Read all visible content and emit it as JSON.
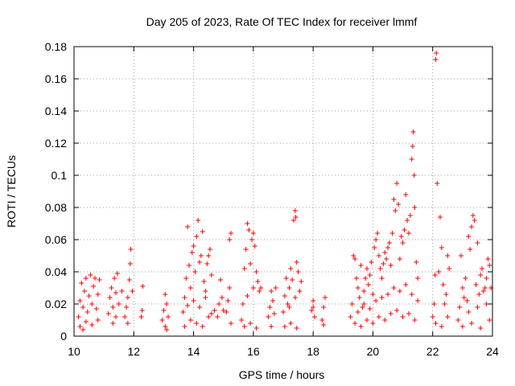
{
  "chart_data": {
    "type": "scatter",
    "title": "Day 205 of 2023, Rate Of TEC Index for receiver lmmf",
    "xlabel": "GPS time / hours",
    "ylabel": "ROTI / TECUs",
    "xlim": [
      10,
      24
    ],
    "ylim": [
      0,
      0.18
    ],
    "x_ticks": [
      10,
      12,
      14,
      16,
      18,
      20,
      22,
      24
    ],
    "x_tick_labels": [
      "10",
      "12",
      "14",
      "16",
      "18",
      "20",
      "22",
      "24"
    ],
    "y_ticks": [
      0,
      0.02,
      0.04,
      0.06,
      0.08,
      0.1,
      0.12,
      0.14,
      0.16,
      0.18
    ],
    "y_tick_labels": [
      "0",
      "0.02",
      "0.04",
      "0.06",
      "0.08",
      "0.1",
      "0.12",
      "0.14",
      "0.16",
      "0.18"
    ],
    "grid": true,
    "marker": "plus",
    "color": "#ff0000",
    "series": [
      {
        "name": "ROTI",
        "points": [
          [
            10.15,
            0.012
          ],
          [
            10.2,
            0.022
          ],
          [
            10.25,
            0.033
          ],
          [
            10.3,
            0.018
          ],
          [
            10.35,
            0.028
          ],
          [
            10.4,
            0.036
          ],
          [
            10.45,
            0.015
          ],
          [
            10.5,
            0.025
          ],
          [
            10.55,
            0.038
          ],
          [
            10.6,
            0.02
          ],
          [
            10.65,
            0.031
          ],
          [
            10.7,
            0.036
          ],
          [
            10.75,
            0.017
          ],
          [
            10.8,
            0.026
          ],
          [
            10.85,
            0.035
          ],
          [
            10.2,
            0.006
          ],
          [
            10.4,
            0.009
          ],
          [
            10.6,
            0.007
          ],
          [
            10.8,
            0.01
          ],
          [
            10.3,
            0.004
          ],
          [
            11.15,
            0.014
          ],
          [
            11.2,
            0.024
          ],
          [
            11.25,
            0.03
          ],
          [
            11.3,
            0.018
          ],
          [
            11.35,
            0.036
          ],
          [
            11.4,
            0.027
          ],
          [
            11.45,
            0.039
          ],
          [
            11.3,
            0.008
          ],
          [
            11.4,
            0.012
          ],
          [
            11.5,
            0.02
          ],
          [
            11.6,
            0.028
          ],
          [
            11.7,
            0.012
          ],
          [
            11.75,
            0.018
          ],
          [
            11.8,
            0.024
          ],
          [
            11.85,
            0.035
          ],
          [
            11.88,
            0.045
          ],
          [
            11.9,
            0.054
          ],
          [
            11.95,
            0.028
          ],
          [
            11.8,
            0.008
          ],
          [
            12.25,
            0.012
          ],
          [
            12.28,
            0.016
          ],
          [
            12.3,
            0.031
          ],
          [
            12.95,
            0.01
          ],
          [
            13.0,
            0.016
          ],
          [
            13.05,
            0.026
          ],
          [
            13.1,
            0.02
          ],
          [
            13.15,
            0.012
          ],
          [
            13.05,
            0.006
          ],
          [
            13.1,
            0.004
          ],
          [
            13.65,
            0.015
          ],
          [
            13.7,
            0.024
          ],
          [
            13.75,
            0.036
          ],
          [
            13.8,
            0.068
          ],
          [
            13.85,
            0.044
          ],
          [
            13.9,
            0.03
          ],
          [
            13.95,
            0.052
          ],
          [
            14.0,
            0.056
          ],
          [
            14.05,
            0.04
          ],
          [
            14.1,
            0.062
          ],
          [
            14.15,
            0.072
          ],
          [
            14.2,
            0.046
          ],
          [
            14.25,
            0.05
          ],
          [
            14.3,
            0.065
          ],
          [
            14.35,
            0.034
          ],
          [
            14.4,
            0.028
          ],
          [
            14.45,
            0.045
          ],
          [
            14.5,
            0.05
          ],
          [
            14.55,
            0.054
          ],
          [
            14.6,
            0.038
          ],
          [
            13.7,
            0.006
          ],
          [
            13.9,
            0.01
          ],
          [
            14.1,
            0.008
          ],
          [
            14.3,
            0.006
          ],
          [
            14.5,
            0.012
          ],
          [
            14.7,
            0.016
          ],
          [
            13.8,
            0.019
          ],
          [
            14.0,
            0.022
          ],
          [
            14.2,
            0.018
          ],
          [
            14.4,
            0.024
          ],
          [
            14.6,
            0.014
          ],
          [
            14.8,
            0.012
          ],
          [
            14.85,
            0.02
          ],
          [
            14.9,
            0.035
          ],
          [
            14.95,
            0.024
          ],
          [
            15.0,
            0.016
          ],
          [
            15.1,
            0.015
          ],
          [
            15.15,
            0.022
          ],
          [
            15.2,
            0.06
          ],
          [
            15.25,
            0.064
          ],
          [
            15.2,
            0.03
          ],
          [
            15.25,
            0.008
          ],
          [
            15.6,
            0.01
          ],
          [
            15.65,
            0.02
          ],
          [
            15.7,
            0.042
          ],
          [
            15.75,
            0.054
          ],
          [
            15.8,
            0.07
          ],
          [
            15.85,
            0.066
          ],
          [
            15.9,
            0.045
          ],
          [
            15.95,
            0.06
          ],
          [
            16.0,
            0.064
          ],
          [
            16.05,
            0.056
          ],
          [
            16.1,
            0.04
          ],
          [
            16.15,
            0.034
          ],
          [
            16.2,
            0.028
          ],
          [
            16.25,
            0.03
          ],
          [
            15.7,
            0.006
          ],
          [
            15.9,
            0.008
          ],
          [
            16.1,
            0.005
          ],
          [
            15.8,
            0.025
          ],
          [
            16.0,
            0.03
          ],
          [
            16.5,
            0.012
          ],
          [
            16.55,
            0.018
          ],
          [
            16.6,
            0.028
          ],
          [
            16.65,
            0.022
          ],
          [
            16.7,
            0.014
          ],
          [
            16.6,
            0.006
          ],
          [
            16.75,
            0.03
          ],
          [
            17.0,
            0.015
          ],
          [
            17.05,
            0.025
          ],
          [
            17.1,
            0.036
          ],
          [
            17.15,
            0.02
          ],
          [
            17.2,
            0.03
          ],
          [
            17.25,
            0.042
          ],
          [
            17.3,
            0.035
          ],
          [
            17.35,
            0.072
          ],
          [
            17.4,
            0.078
          ],
          [
            17.42,
            0.074
          ],
          [
            17.45,
            0.046
          ],
          [
            17.5,
            0.04
          ],
          [
            17.55,
            0.028
          ],
          [
            17.6,
            0.034
          ],
          [
            17.05,
            0.006
          ],
          [
            17.25,
            0.008
          ],
          [
            17.45,
            0.005
          ],
          [
            17.2,
            0.018
          ],
          [
            17.4,
            0.024
          ],
          [
            17.95,
            0.016
          ],
          [
            18.0,
            0.022
          ],
          [
            18.05,
            0.012
          ],
          [
            18.0,
            0.018
          ],
          [
            18.3,
            0.01
          ],
          [
            18.35,
            0.018
          ],
          [
            18.4,
            0.024
          ],
          [
            18.35,
            0.007
          ],
          [
            19.25,
            0.012
          ],
          [
            19.3,
            0.02
          ],
          [
            19.35,
            0.05
          ],
          [
            19.4,
            0.048
          ],
          [
            19.45,
            0.036
          ],
          [
            19.5,
            0.03
          ],
          [
            19.55,
            0.024
          ],
          [
            19.6,
            0.044
          ],
          [
            19.65,
            0.018
          ],
          [
            19.7,
            0.028
          ],
          [
            19.75,
            0.036
          ],
          [
            19.8,
            0.042
          ],
          [
            19.85,
            0.032
          ],
          [
            19.9,
            0.038
          ],
          [
            19.95,
            0.046
          ],
          [
            20.0,
            0.026
          ],
          [
            20.05,
            0.055
          ],
          [
            20.1,
            0.06
          ],
          [
            20.15,
            0.064
          ],
          [
            20.2,
            0.05
          ],
          [
            20.25,
            0.042
          ],
          [
            20.3,
            0.036
          ],
          [
            20.35,
            0.045
          ],
          [
            20.4,
            0.052
          ],
          [
            20.45,
            0.048
          ],
          [
            20.5,
            0.055
          ],
          [
            20.55,
            0.058
          ],
          [
            20.6,
            0.044
          ],
          [
            20.65,
            0.064
          ],
          [
            20.7,
            0.085
          ],
          [
            20.75,
            0.078
          ],
          [
            20.8,
            0.095
          ],
          [
            20.85,
            0.082
          ],
          [
            20.9,
            0.048
          ],
          [
            20.95,
            0.062
          ],
          [
            21.0,
            0.058
          ],
          [
            21.05,
            0.066
          ],
          [
            21.1,
            0.088
          ],
          [
            21.15,
            0.072
          ],
          [
            21.2,
            0.064
          ],
          [
            21.25,
            0.075
          ],
          [
            21.3,
            0.11
          ],
          [
            21.33,
            0.118
          ],
          [
            21.35,
            0.127
          ],
          [
            21.38,
            0.1
          ],
          [
            21.4,
            0.08
          ],
          [
            21.45,
            0.046
          ],
          [
            21.5,
            0.036
          ],
          [
            19.4,
            0.008
          ],
          [
            19.6,
            0.006
          ],
          [
            19.8,
            0.01
          ],
          [
            20.0,
            0.008
          ],
          [
            20.2,
            0.012
          ],
          [
            20.4,
            0.01
          ],
          [
            20.6,
            0.014
          ],
          [
            20.8,
            0.016
          ],
          [
            21.0,
            0.012
          ],
          [
            21.2,
            0.014
          ],
          [
            21.4,
            0.01
          ],
          [
            19.5,
            0.015
          ],
          [
            19.7,
            0.02
          ],
          [
            19.9,
            0.017
          ],
          [
            20.1,
            0.022
          ],
          [
            20.3,
            0.024
          ],
          [
            20.5,
            0.026
          ],
          [
            20.7,
            0.03
          ],
          [
            20.9,
            0.028
          ],
          [
            21.1,
            0.032
          ],
          [
            21.3,
            0.026
          ],
          [
            21.5,
            0.022
          ],
          [
            22.0,
            0.012
          ],
          [
            22.05,
            0.02
          ],
          [
            22.08,
            0.038
          ],
          [
            22.1,
            0.172
          ],
          [
            22.12,
            0.176
          ],
          [
            22.15,
            0.095
          ],
          [
            22.2,
            0.04
          ],
          [
            22.25,
            0.074
          ],
          [
            22.3,
            0.055
          ],
          [
            22.35,
            0.032
          ],
          [
            22.4,
            0.02
          ],
          [
            22.45,
            0.026
          ],
          [
            22.5,
            0.05
          ],
          [
            22.55,
            0.042
          ],
          [
            22.1,
            0.008
          ],
          [
            22.3,
            0.006
          ],
          [
            22.5,
            0.012
          ],
          [
            22.85,
            0.01
          ],
          [
            22.9,
            0.018
          ],
          [
            22.95,
            0.05
          ],
          [
            23.0,
            0.03
          ],
          [
            23.05,
            0.024
          ],
          [
            23.1,
            0.036
          ],
          [
            23.15,
            0.022
          ],
          [
            23.2,
            0.062
          ],
          [
            23.25,
            0.054
          ],
          [
            23.3,
            0.068
          ],
          [
            23.35,
            0.075
          ],
          [
            23.4,
            0.072
          ],
          [
            23.45,
            0.032
          ],
          [
            23.5,
            0.058
          ],
          [
            23.55,
            0.026
          ],
          [
            23.6,
            0.038
          ],
          [
            23.65,
            0.042
          ],
          [
            23.7,
            0.028
          ],
          [
            23.75,
            0.03
          ],
          [
            23.8,
            0.036
          ],
          [
            23.85,
            0.048
          ],
          [
            23.9,
            0.044
          ],
          [
            23.95,
            0.03
          ],
          [
            23.0,
            0.006
          ],
          [
            23.3,
            0.008
          ],
          [
            23.6,
            0.005
          ],
          [
            23.9,
            0.01
          ],
          [
            23.2,
            0.015
          ],
          [
            23.5,
            0.018
          ],
          [
            23.8,
            0.02
          ]
        ]
      }
    ]
  }
}
